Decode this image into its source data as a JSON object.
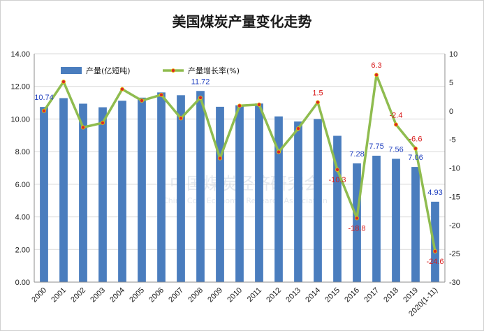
{
  "chart_data": {
    "type": "bar+line",
    "title": "美国煤炭产量变化走势",
    "watermark": {
      "cn": "中国煤炭经济研究会",
      "en": "China Coal Economic Research Association"
    },
    "categories": [
      "2000",
      "2001",
      "2002",
      "2003",
      "2004",
      "2005",
      "2006",
      "2007",
      "2008",
      "2009",
      "2010",
      "2011",
      "2012",
      "2013",
      "2014",
      "2015",
      "2016",
      "2017",
      "2018",
      "2019",
      "2020(1-11)"
    ],
    "series": [
      {
        "name": "产量(亿短吨)",
        "type": "bar",
        "axis": "left",
        "color": "#4a7dbe",
        "values": [
          10.74,
          11.28,
          10.94,
          10.72,
          11.12,
          11.31,
          11.63,
          11.46,
          11.72,
          10.75,
          10.84,
          10.95,
          10.16,
          9.85,
          10.0,
          8.97,
          7.28,
          7.75,
          7.56,
          7.06,
          4.93
        ],
        "labels": {
          "0": "10.74",
          "8": "11.72",
          "16": "7.28",
          "17": "7.75",
          "18": "7.56",
          "19": "7.06",
          "20": "4.93"
        }
      },
      {
        "name": "产量增长率(%)",
        "type": "line",
        "axis": "right",
        "color": "#8fbc4f",
        "marker_color": "#d6282a",
        "values": [
          0.0,
          5.1,
          -2.9,
          -2.1,
          3.8,
          1.8,
          2.8,
          -1.3,
          2.3,
          -8.3,
          0.9,
          1.1,
          -7.2,
          -3.1,
          1.5,
          -10.3,
          -18.8,
          6.3,
          -2.4,
          -6.6,
          -24.6
        ],
        "labels": {
          "14": "1.5",
          "15": "-10.3",
          "16": "-18.8",
          "17": "6.3",
          "18": "-2.4",
          "19": "-6.6",
          "20": "-24.6"
        }
      }
    ],
    "y_left": {
      "min": 0,
      "max": 14,
      "step": 2,
      "decimals": 2
    },
    "y_right": {
      "min": -30,
      "max": 10,
      "step": 5
    },
    "grid": true,
    "legend_position": "top-left"
  }
}
